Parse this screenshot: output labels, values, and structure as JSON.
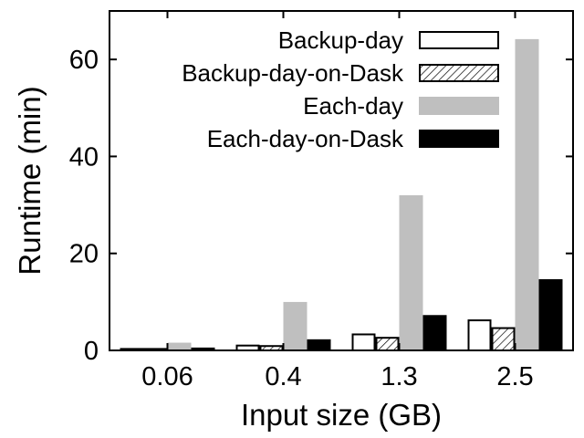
{
  "chart_data": {
    "type": "bar",
    "title": "",
    "xlabel": "Input size (GB)",
    "ylabel": "Runtime (min)",
    "categories": [
      "0.06",
      "0.4",
      "1.3",
      "2.5"
    ],
    "ylim": [
      0,
      70
    ],
    "yticks": [
      0,
      20,
      40,
      60
    ],
    "grid": false,
    "legend_position": "top-right",
    "series": [
      {
        "name": "Backup-day",
        "values": [
          0.3,
          1.0,
          3.3,
          6.2
        ],
        "fill": "#ffffff",
        "pattern": "none"
      },
      {
        "name": "Backup-day-on-Dask",
        "values": [
          0.3,
          0.9,
          2.6,
          4.6
        ],
        "fill": "#ffffff",
        "pattern": "hatch"
      },
      {
        "name": "Each-day",
        "values": [
          1.4,
          9.8,
          31.8,
          64.0
        ],
        "fill": "#bfbfbf",
        "pattern": "none"
      },
      {
        "name": "Each-day-on-Dask",
        "values": [
          0.4,
          2.1,
          7.1,
          14.5
        ],
        "fill": "#000000",
        "pattern": "none"
      }
    ]
  }
}
